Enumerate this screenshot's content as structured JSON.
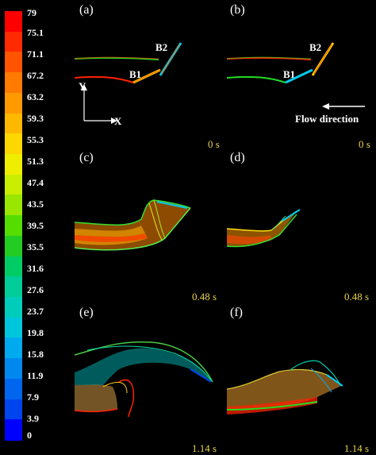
{
  "colorbar": {
    "ticks": [
      "79",
      "75.1",
      "71.1",
      "67.2",
      "63.2",
      "59.3",
      "55.3",
      "51.3",
      "47.4",
      "43.5",
      "39.5",
      "35.5",
      "31.6",
      "27.6",
      "23.7",
      "19.8",
      "15.8",
      "11.9",
      "7.9",
      "3.9",
      "0"
    ],
    "colors": [
      "#ff0000",
      "#ff2a00",
      "#ff5500",
      "#ff7a00",
      "#ff9900",
      "#ffb800",
      "#ffd700",
      "#f0ee00",
      "#c9ee00",
      "#99e600",
      "#55dd00",
      "#22cc22",
      "#00cc66",
      "#00cc99",
      "#00ccbb",
      "#00c6dd",
      "#00aaee",
      "#0088ee",
      "#0066ee",
      "#0044ee",
      "#0000ff"
    ]
  },
  "panels": {
    "a": {
      "label": "(a)",
      "time": "0 s"
    },
    "b": {
      "label": "(b)",
      "time": "0 s"
    },
    "c": {
      "label": "(c)",
      "time": "0.48 s"
    },
    "d": {
      "label": "(d)",
      "time": "0.48 s"
    },
    "e": {
      "label": "(e)",
      "time": "1.14 s"
    },
    "f": {
      "label": "(f)",
      "time": "1.14 s"
    }
  },
  "boundaries": {
    "b1": "B1",
    "b2": "B2"
  },
  "axes": {
    "y": "Y",
    "x": "X"
  },
  "flow_direction": "Flow direction"
}
